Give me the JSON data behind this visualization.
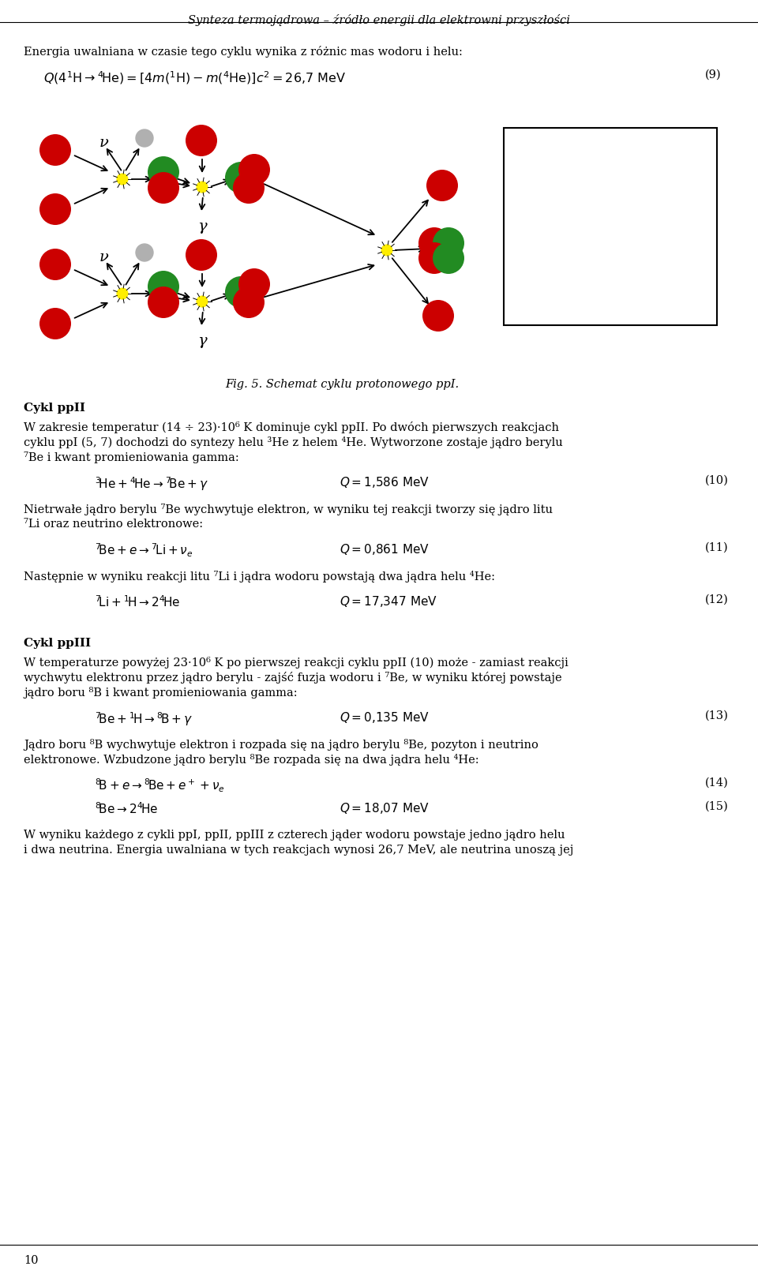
{
  "header_text": "Synteza termojądrowa – źródło energii dla elektrowni przyszłości",
  "bg_color": "#ffffff",
  "text_color": "#000000",
  "page_number": "10",
  "intro_line1": "Energia uwalniana w czasie tego cyklu wynika z różnic mas wodoru i helu:",
  "eq_number_main": "(9)",
  "fig_caption": "Fig. 5. Schemat cyklu protonowego ppI.",
  "section_ppII_title": "Cykl ppII",
  "ppII_para1a": "W zakresie temperatur (14 ÷ 23)·10",
  "ppII_para1b": " K dominuje cykl ppII. Po dwóch pierwszych reakcjach",
  "ppII_para1c": "cyklu ppI (5, 7) dochodzi do syntezy helu ",
  "ppII_para1d": "He z helem ",
  "ppII_para1e": "He. Wytworzone zostaje jądro berylu",
  "ppII_para1f": "Be i kwant promieniowania gamma:",
  "eq10_num": "(10)",
  "ppII_para2a": "Nietrwałe jądro berylu ",
  "ppII_para2b": "Be wychwytuje elektron, w wyniku tej reakcji tworzy się jądro litu",
  "ppII_para2c": "Li oraz neutrino elektronowe:",
  "eq11_num": "(11)",
  "ppII_para3a": "Następnie w wyniku reakcji litu ",
  "ppII_para3b": "Li i jądra wodoru powstają dwa jądra helu ",
  "ppII_para3c": "He:",
  "eq12_num": "(12)",
  "section_ppIII_title": "Cykl ppIII",
  "ppIII_para1a": "W temperaturze powyżej 23·10",
  "ppIII_para1b": " K po pierwszej reakcji cyklu ppII (10) może - zamiast reakcji",
  "ppIII_para1c": "wychwytu elektronu przez jądro berylu - zajść fuzja wodoru i ",
  "ppIII_para1d": "Be, w wyniku której powstaje",
  "ppIII_para1e": "jądro boru ",
  "ppIII_para1f": "B i kwant promieniowania gamma:",
  "eq13_num": "(13)",
  "ppIII_para2a": "Jądro boru ",
  "ppIII_para2b": "B wychwytuje elektron i rozpada się na jądro berylu ",
  "ppIII_para2c": "Be, pozyton i neutrino",
  "ppIII_para2d": "elektronowe. Wzbudzone jądro berylu ",
  "ppIII_para2e": "Be rozpada się na dwa jądra helu ",
  "ppIII_para2f": "He:",
  "eq14_num": "(14)",
  "eq15_num": "(15)",
  "ppIII_para3": "W wyniku każdego z cykli ppI, ppII, ppIII z czterech jąder wodoru powstaje jedno jądro helu\ni dwa neutrina. Energia uwalniana w tych reakcjach wynosi 26,7 MeV, ale neutrina unoszą jej"
}
